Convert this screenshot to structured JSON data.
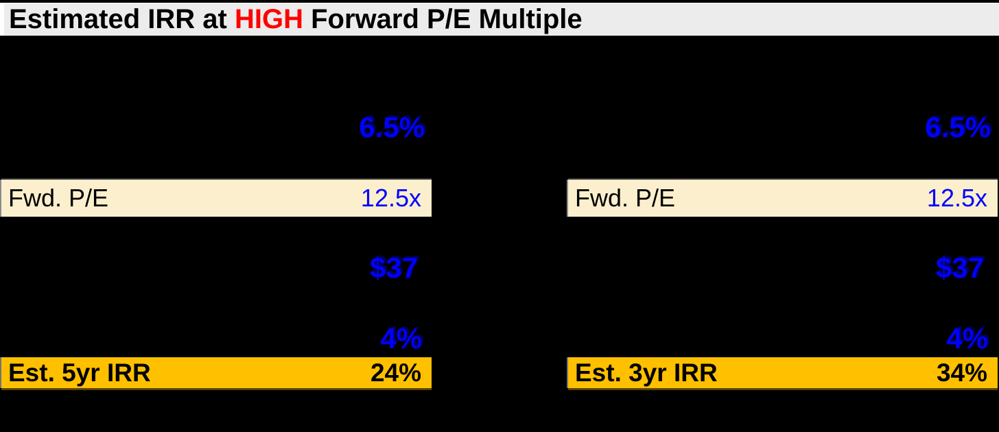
{
  "title": {
    "prefix": "Estimated IRR at ",
    "highlight": "HIGH",
    "suffix": " Forward P/E Multiple"
  },
  "colors": {
    "background": "#000000",
    "titlebar_gray": "#ECECEC",
    "highlight_red": "#FF0000",
    "value_blue": "#0000FF",
    "row_cream": "#FBEFCD",
    "row_gold": "#FFC000"
  },
  "panels": [
    {
      "growth_pct": "6.5%",
      "fwd_pe_label": "Fwd. P/E",
      "fwd_pe_value": "12.5x",
      "price_value": "$37",
      "yield_pct": "4%",
      "irr_label": "Est. 5yr IRR",
      "irr_value": "24%"
    },
    {
      "growth_pct": "6.5%",
      "fwd_pe_label": "Fwd. P/E",
      "fwd_pe_value": "12.5x",
      "price_value": "$37",
      "yield_pct": "4%",
      "irr_label": "Est. 3yr IRR",
      "irr_value": "34%"
    }
  ]
}
